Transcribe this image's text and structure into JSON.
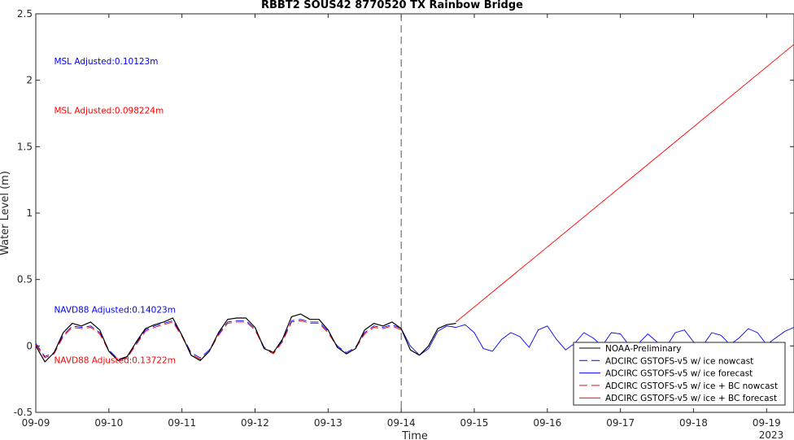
{
  "chart_data": {
    "type": "line",
    "title": "RBBT2 SOUS42 8770520 TX Rainbow Bridge",
    "xlabel": "Time",
    "ylabel": "Water Level (m)",
    "x_year_label": "2023",
    "xlim": [
      "2023-09-09T00:00",
      "2023-09-19T09:00"
    ],
    "ylim": [
      -0.5,
      2.5
    ],
    "xticks": [
      "09-09",
      "09-10",
      "09-11",
      "09-12",
      "09-13",
      "09-14",
      "09-15",
      "09-16",
      "09-17",
      "09-18",
      "09-19"
    ],
    "yticks": [
      "-0.5",
      "0",
      "0.5",
      "1",
      "1.5",
      "2",
      "2.5"
    ],
    "nowcast_forecast_divider": "2023-09-14T00:00",
    "grid": false,
    "legend_position": "bottom-right",
    "annotations": [
      {
        "text": "MSL Adjusted:0.10123m",
        "color": "#0000ff",
        "x": "2023-09-09T06:00",
        "y": 2.12
      },
      {
        "text": "MSL Adjusted:0.098224m",
        "color": "#ff0000",
        "x": "2023-09-09T06:00",
        "y": 1.75
      },
      {
        "text": "NAVD88 Adjusted:0.14023m",
        "color": "#0000ff",
        "x": "2023-09-09T06:00",
        "y": 0.25
      },
      {
        "text": "NAVD88 Adjusted:0.13722m",
        "color": "#ff0000",
        "x": "2023-09-09T06:00",
        "y": -0.13
      }
    ],
    "series": [
      {
        "name": "NOAA-Preliminary",
        "color": "#000000",
        "dash": "solid",
        "x": [
          "2023-09-09T00:00",
          "2023-09-09T03:00",
          "2023-09-09T06:00",
          "2023-09-09T09:00",
          "2023-09-09T12:00",
          "2023-09-09T15:00",
          "2023-09-09T18:00",
          "2023-09-09T21:00",
          "2023-09-10T00:00",
          "2023-09-10T03:00",
          "2023-09-10T06:00",
          "2023-09-10T09:00",
          "2023-09-10T12:00",
          "2023-09-10T15:00",
          "2023-09-10T18:00",
          "2023-09-10T21:00",
          "2023-09-11T00:00",
          "2023-09-11T03:00",
          "2023-09-11T06:00",
          "2023-09-11T09:00",
          "2023-09-11T12:00",
          "2023-09-11T15:00",
          "2023-09-11T18:00",
          "2023-09-11T21:00",
          "2023-09-12T00:00",
          "2023-09-12T03:00",
          "2023-09-12T06:00",
          "2023-09-12T09:00",
          "2023-09-12T12:00",
          "2023-09-12T15:00",
          "2023-09-12T18:00",
          "2023-09-12T21:00",
          "2023-09-13T00:00",
          "2023-09-13T03:00",
          "2023-09-13T06:00",
          "2023-09-13T09:00",
          "2023-09-13T12:00",
          "2023-09-13T15:00",
          "2023-09-13T18:00",
          "2023-09-13T21:00",
          "2023-09-14T00:00",
          "2023-09-14T03:00",
          "2023-09-14T06:00",
          "2023-09-14T09:00",
          "2023-09-14T12:00",
          "2023-09-14T15:00",
          "2023-09-14T18:00"
        ],
        "y": [
          0.0,
          -0.12,
          -0.05,
          0.1,
          0.17,
          0.15,
          0.18,
          0.12,
          -0.04,
          -0.11,
          -0.08,
          0.03,
          0.13,
          0.16,
          0.18,
          0.21,
          0.08,
          -0.07,
          -0.11,
          -0.04,
          0.1,
          0.2,
          0.21,
          0.21,
          0.14,
          -0.02,
          -0.05,
          0.05,
          0.22,
          0.24,
          0.2,
          0.2,
          0.12,
          -0.01,
          -0.06,
          -0.02,
          0.12,
          0.17,
          0.15,
          0.18,
          0.13,
          -0.03,
          -0.07,
          0.0,
          0.13,
          0.16,
          0.17
        ]
      },
      {
        "name": "ADCIRC GSTOFS-v5 w/ ice nowcast",
        "color": "#0000ff",
        "dash": "dashed",
        "x": [
          "2023-09-09T00:00",
          "2023-09-09T03:00",
          "2023-09-09T06:00",
          "2023-09-09T09:00",
          "2023-09-09T12:00",
          "2023-09-09T15:00",
          "2023-09-09T18:00",
          "2023-09-09T21:00",
          "2023-09-10T00:00",
          "2023-09-10T03:00",
          "2023-09-10T06:00",
          "2023-09-10T09:00",
          "2023-09-10T12:00",
          "2023-09-10T15:00",
          "2023-09-10T18:00",
          "2023-09-10T21:00",
          "2023-09-11T00:00",
          "2023-09-11T03:00",
          "2023-09-11T06:00",
          "2023-09-11T09:00",
          "2023-09-11T12:00",
          "2023-09-11T15:00",
          "2023-09-11T18:00",
          "2023-09-11T21:00",
          "2023-09-12T00:00",
          "2023-09-12T03:00",
          "2023-09-12T06:00",
          "2023-09-12T09:00",
          "2023-09-12T12:00",
          "2023-09-12T15:00",
          "2023-09-12T18:00",
          "2023-09-12T21:00",
          "2023-09-13T00:00",
          "2023-09-13T03:00",
          "2023-09-13T06:00",
          "2023-09-13T09:00",
          "2023-09-13T12:00",
          "2023-09-13T15:00",
          "2023-09-13T18:00",
          "2023-09-13T21:00",
          "2023-09-14T00:00"
        ],
        "y": [
          0.02,
          -0.08,
          -0.05,
          0.08,
          0.15,
          0.14,
          0.15,
          0.1,
          -0.03,
          -0.1,
          -0.08,
          0.02,
          0.12,
          0.15,
          0.17,
          0.19,
          0.08,
          -0.05,
          -0.09,
          -0.03,
          0.09,
          0.18,
          0.19,
          0.19,
          0.13,
          -0.01,
          -0.05,
          0.04,
          0.19,
          0.2,
          0.18,
          0.18,
          0.11,
          0.0,
          -0.05,
          -0.01,
          0.1,
          0.15,
          0.14,
          0.16,
          0.13
        ]
      },
      {
        "name": "ADCIRC GSTOFS-v5 w/ ice forecast",
        "color": "#0000ff",
        "dash": "solid",
        "x": [
          "2023-09-14T00:00",
          "2023-09-14T03:00",
          "2023-09-14T06:00",
          "2023-09-14T09:00",
          "2023-09-14T12:00",
          "2023-09-14T15:00",
          "2023-09-14T18:00",
          "2023-09-14T21:00",
          "2023-09-15T00:00",
          "2023-09-15T03:00",
          "2023-09-15T06:00",
          "2023-09-15T09:00",
          "2023-09-15T12:00",
          "2023-09-15T15:00",
          "2023-09-15T18:00",
          "2023-09-15T21:00",
          "2023-09-16T00:00",
          "2023-09-16T03:00",
          "2023-09-16T06:00",
          "2023-09-16T09:00",
          "2023-09-16T12:00",
          "2023-09-16T15:00",
          "2023-09-16T18:00",
          "2023-09-16T21:00",
          "2023-09-17T00:00",
          "2023-09-17T03:00",
          "2023-09-17T06:00",
          "2023-09-17T09:00",
          "2023-09-17T12:00",
          "2023-09-17T15:00",
          "2023-09-17T18:00",
          "2023-09-17T21:00",
          "2023-09-18T00:00",
          "2023-09-18T03:00",
          "2023-09-18T06:00",
          "2023-09-18T09:00",
          "2023-09-18T12:00",
          "2023-09-18T15:00",
          "2023-09-18T18:00",
          "2023-09-18T21:00",
          "2023-09-19T00:00",
          "2023-09-19T03:00",
          "2023-09-19T06:00",
          "2023-09-19T09:00"
        ],
        "y": [
          0.13,
          0.0,
          -0.07,
          -0.02,
          0.11,
          0.15,
          0.14,
          0.16,
          0.1,
          -0.02,
          -0.04,
          0.05,
          0.1,
          0.07,
          -0.01,
          0.12,
          0.15,
          0.05,
          -0.03,
          0.02,
          0.1,
          0.06,
          0.0,
          0.1,
          0.09,
          0.0,
          0.02,
          0.09,
          0.03,
          -0.01,
          0.1,
          0.12,
          0.03,
          0.0,
          0.1,
          0.08,
          0.01,
          0.06,
          0.13,
          0.1,
          0.01,
          0.06,
          0.11,
          0.14
        ]
      },
      {
        "name": "ADCIRC GSTOFS-v5 w/ ice + BC nowcast",
        "color": "#ff0000",
        "dash": "dashed",
        "x": [
          "2023-09-09T00:00",
          "2023-09-09T03:00",
          "2023-09-09T06:00",
          "2023-09-09T09:00",
          "2023-09-09T12:00",
          "2023-09-09T15:00",
          "2023-09-09T18:00",
          "2023-09-09T21:00",
          "2023-09-10T00:00",
          "2023-09-10T03:00",
          "2023-09-10T06:00",
          "2023-09-10T09:00",
          "2023-09-10T12:00",
          "2023-09-10T15:00",
          "2023-09-10T18:00",
          "2023-09-10T21:00",
          "2023-09-11T00:00",
          "2023-09-11T03:00",
          "2023-09-11T06:00",
          "2023-09-11T09:00",
          "2023-09-11T12:00",
          "2023-09-11T15:00",
          "2023-09-11T18:00",
          "2023-09-11T21:00",
          "2023-09-12T00:00",
          "2023-09-12T03:00",
          "2023-09-12T06:00",
          "2023-09-12T09:00",
          "2023-09-12T12:00",
          "2023-09-12T15:00",
          "2023-09-12T18:00",
          "2023-09-12T21:00",
          "2023-09-13T00:00",
          "2023-09-13T03:00",
          "2023-09-13T06:00",
          "2023-09-13T09:00",
          "2023-09-13T12:00",
          "2023-09-13T15:00",
          "2023-09-13T18:00",
          "2023-09-13T21:00",
          "2023-09-14T00:00"
        ],
        "y": [
          0.01,
          -0.09,
          -0.06,
          0.07,
          0.14,
          0.13,
          0.14,
          0.09,
          -0.04,
          -0.11,
          -0.09,
          0.01,
          0.11,
          0.14,
          0.16,
          0.18,
          0.07,
          -0.06,
          -0.1,
          -0.04,
          0.08,
          0.17,
          0.18,
          0.18,
          0.12,
          -0.02,
          -0.06,
          0.03,
          0.18,
          0.19,
          0.17,
          0.17,
          0.1,
          -0.01,
          -0.06,
          -0.02,
          0.09,
          0.14,
          0.13,
          0.15,
          0.12
        ]
      },
      {
        "name": "ADCIRC GSTOFS-v5 w/ ice + BC forecast",
        "color": "#ff0000",
        "dash": "solid",
        "x": [
          "2023-09-14T18:00",
          "2023-09-19T09:00"
        ],
        "y": [
          0.18,
          2.27
        ]
      }
    ]
  }
}
